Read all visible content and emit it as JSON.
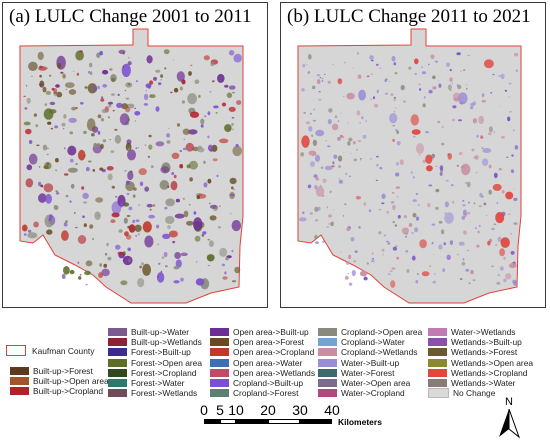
{
  "panels": {
    "a": {
      "title": "(a) LULC Change 2001 to 2011"
    },
    "b": {
      "title": "(b) LULC Change 2011 to 2021"
    }
  },
  "legend": {
    "boundary": {
      "label": "Kaufman County",
      "color": "#e0413a"
    },
    "group1": [
      {
        "label": "Built-up->Forest",
        "color": "#5b3a1f"
      },
      {
        "label": "Built-up->Open area",
        "color": "#a5542a"
      },
      {
        "label": "Built-up->Cropland",
        "color": "#b3202c"
      }
    ],
    "col2": [
      {
        "label": "Built-up->Water",
        "color": "#7c5a8f"
      },
      {
        "label": "Built-up->Wetlands",
        "color": "#8a2336"
      },
      {
        "label": "Forest->Built-up",
        "color": "#3c2c8f"
      },
      {
        "label": "Forest->Open area",
        "color": "#5c6e2a"
      },
      {
        "label": "Forest->Cropland",
        "color": "#2f4a1e"
      },
      {
        "label": "Forest->Water",
        "color": "#2c7a6c"
      },
      {
        "label": "Forest->Wetlands",
        "color": "#6e4c5a"
      }
    ],
    "col3": [
      {
        "label": "Open area->Built-up",
        "color": "#6d2d93"
      },
      {
        "label": "Open area->Forest",
        "color": "#6b4a1f"
      },
      {
        "label": "Open area->Cropland",
        "color": "#c0392b"
      },
      {
        "label": "Open area->Water",
        "color": "#3c6fb5"
      },
      {
        "label": "Open area->Wetlands",
        "color": "#c04a6a"
      },
      {
        "label": "Cropland->Built-up",
        "color": "#7b4fd1"
      },
      {
        "label": "Cropland->Forest",
        "color": "#5b7f73"
      }
    ],
    "col4": [
      {
        "label": "Cropland->Open area",
        "color": "#8a8a7c"
      },
      {
        "label": "Cropland->Water",
        "color": "#6fa5d8"
      },
      {
        "label": "Cropland->Wetlands",
        "color": "#c98ea0"
      },
      {
        "label": "Water->Built-up",
        "color": "#9a8fd6"
      },
      {
        "label": "Water->Forest",
        "color": "#3f6a6a"
      },
      {
        "label": "Water->Open area",
        "color": "#7f6a8f"
      },
      {
        "label": "Water->Cropland",
        "color": "#b04a7a"
      }
    ],
    "col5": [
      {
        "label": "Water->Wetlands",
        "color": "#c07bb5"
      },
      {
        "label": "Wetlands->Built-up",
        "color": "#8b4fb0"
      },
      {
        "label": "Wetlands->Forest",
        "color": "#6b5a2f"
      },
      {
        "label": "Wetlands->Open area",
        "color": "#8a8a2c"
      },
      {
        "label": "Wetlands->Cropland",
        "color": "#e04a3a"
      },
      {
        "label": "Wetlands->Water",
        "color": "#8a7a7a"
      },
      {
        "label": "No Change",
        "color": "#d9d9d9"
      }
    ]
  },
  "scale_bar": {
    "ticks": [
      "0",
      "5",
      "10",
      "20",
      "30",
      "40"
    ],
    "unit": "Kilometers"
  },
  "north_arrow": {
    "label": "N"
  }
}
